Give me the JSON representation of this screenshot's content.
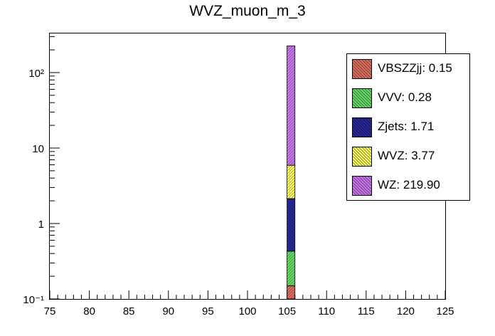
{
  "chart_data": {
    "type": "bar",
    "title": "WVZ_muon_m_3",
    "xlabel": "",
    "ylabel": "",
    "xlim": [
      75,
      125
    ],
    "ylim": [
      0.1,
      330
    ],
    "y_scale": "log",
    "stacked": true,
    "bin": [
      105,
      106
    ],
    "x_ticks": [
      75,
      80,
      85,
      90,
      95,
      100,
      105,
      110,
      115,
      120,
      125
    ],
    "y_tick_labels": [
      "10⁻¹",
      "1",
      "10",
      "10²"
    ],
    "legend_position": "top-right",
    "series": [
      {
        "name": "VBSZZjj",
        "value": 0.15,
        "color": "#e07060",
        "legend": "VBSZZjj: 0.15"
      },
      {
        "name": "VVV",
        "value": 0.28,
        "color": "#66dd66",
        "legend": "VVV: 0.28"
      },
      {
        "name": "Zjets",
        "value": 1.71,
        "color": "#2a2a9a",
        "legend": "Zjets: 1.71"
      },
      {
        "name": "WVZ",
        "value": 3.77,
        "color": "#ffff66",
        "legend": "WVZ: 3.77"
      },
      {
        "name": "WZ",
        "value": 219.9,
        "color": "#cc77ee",
        "legend": "WZ: 219.90"
      }
    ],
    "legend_order": [
      "VBSZZjj",
      "VVV",
      "Zjets",
      "WVZ",
      "WZ"
    ]
  }
}
